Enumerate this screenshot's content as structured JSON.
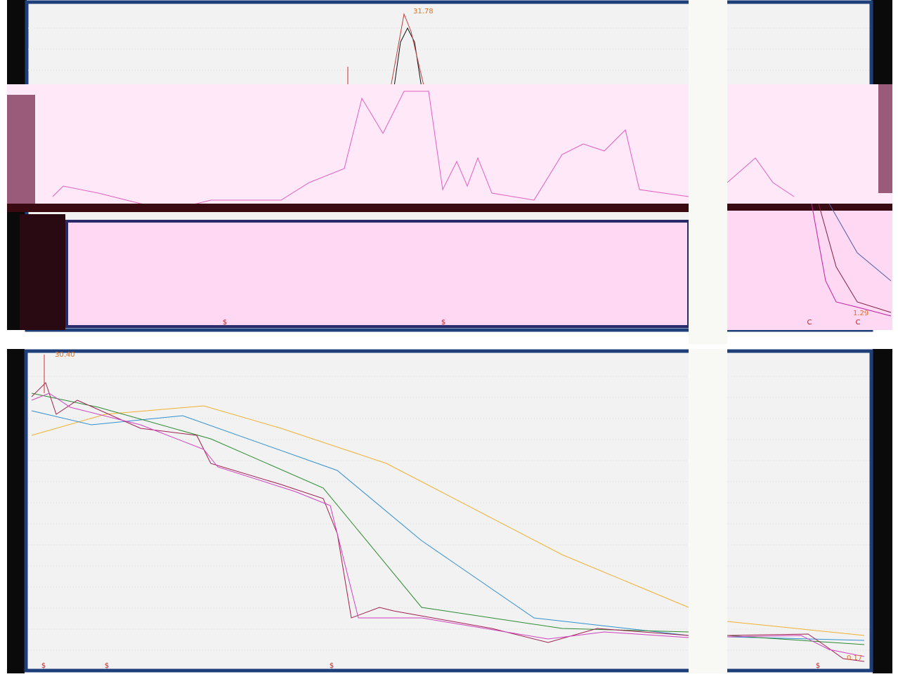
{
  "top_panel": {
    "high_label": "31.78",
    "low_label": "1.29",
    "markers": [
      "$",
      "$",
      "C",
      "C"
    ]
  },
  "bottom_panel": {
    "high_label": "30.40",
    "low_label": "0.17",
    "markers": [
      "$",
      "$",
      "$",
      "$"
    ]
  }
}
